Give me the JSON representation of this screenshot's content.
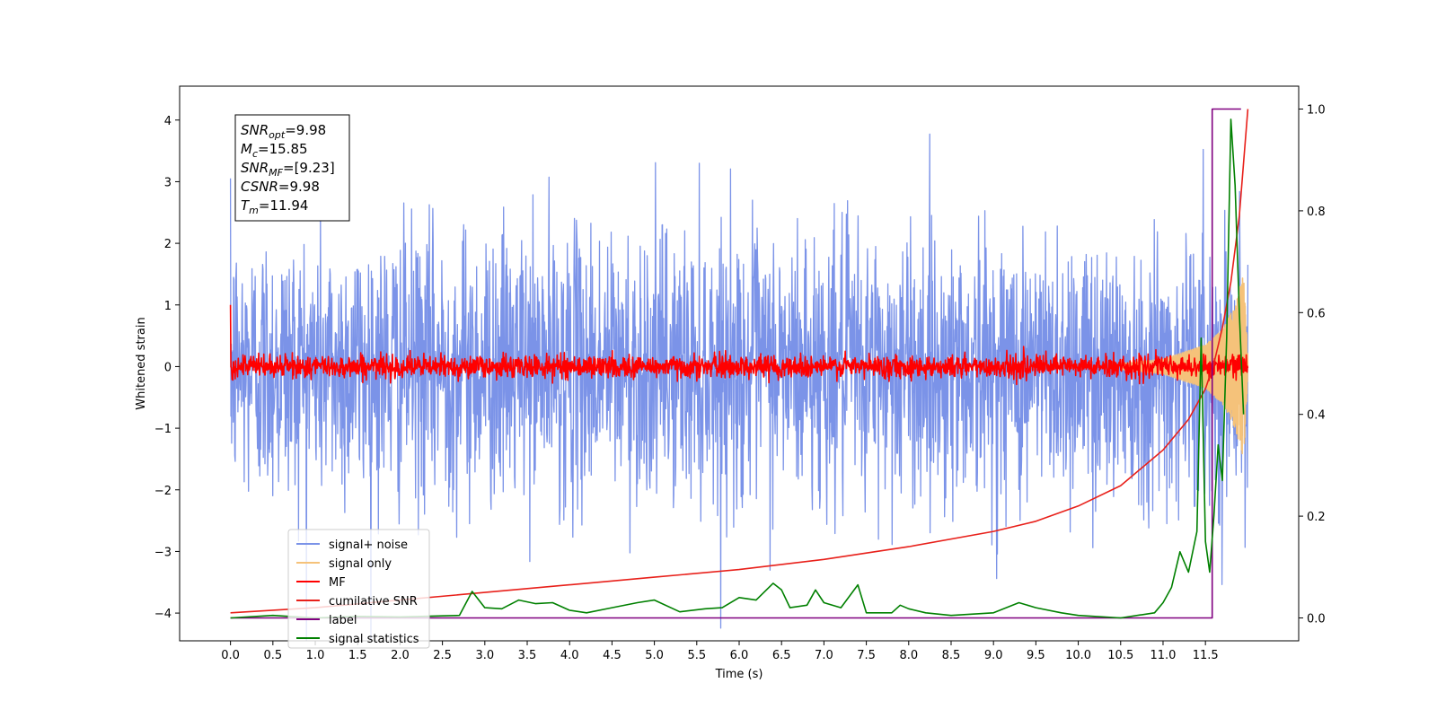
{
  "chart_data": {
    "type": "line",
    "xlabel": "Time (s)",
    "ylabel": "Whitened strain",
    "x_ticks": [
      "0.0",
      "0.5",
      "1.0",
      "1.5",
      "2.0",
      "2.5",
      "3.0",
      "3.5",
      "4.0",
      "4.5",
      "5.0",
      "5.5",
      "6.0",
      "6.5",
      "7.0",
      "7.5",
      "8.0",
      "8.5",
      "9.0",
      "9.5",
      "10.0",
      "10.5",
      "11.0",
      "11.5"
    ],
    "x_tick_values": [
      0,
      0.5,
      1,
      1.5,
      2,
      2.5,
      3,
      3.5,
      4,
      4.5,
      5,
      5.5,
      6,
      6.5,
      7,
      7.5,
      8,
      8.5,
      9,
      9.5,
      10,
      10.5,
      11,
      11.5
    ],
    "y_ticks": [
      "−4",
      "−3",
      "−2",
      "−1",
      "0",
      "1",
      "2",
      "3",
      "4"
    ],
    "y_tick_values": [
      -4,
      -3,
      -2,
      -1,
      0,
      1,
      2,
      3,
      4
    ],
    "y2_ticks": [
      "0.0",
      "0.2",
      "0.4",
      "0.6",
      "0.8",
      "1.0"
    ],
    "y2_tick_values": [
      0,
      0.2,
      0.4,
      0.6,
      0.8,
      1.0
    ],
    "xlim": [
      -0.6,
      12.6
    ],
    "ylim": [
      -4.45,
      4.55
    ],
    "y2lim": [
      -0.045,
      1.045
    ],
    "legend_position": "lower-left",
    "annotation": {
      "lines": [
        {
          "sym": "SNR",
          "sub": "opt",
          "val": "=9.98"
        },
        {
          "sym": "M",
          "sub": "c",
          "val": "=15.85"
        },
        {
          "sym": "SNR",
          "sub": "MF",
          "val": "=[9.23]"
        },
        {
          "sym": "CSNR",
          "sub": "",
          "val": "=9.98"
        },
        {
          "sym": "T",
          "sub": "m",
          "val": "=11.94"
        }
      ]
    },
    "series": [
      {
        "name": "signal+ noise",
        "color": "#7b93e8",
        "axis": "left",
        "description_shape": "noise",
        "amplitude_std": 1.1,
        "t_start": 0.0,
        "t_end": 12.0
      },
      {
        "name": "signal only",
        "color": "#f5c27a",
        "axis": "left",
        "description_shape": "chirp",
        "t_start": 10.5,
        "t_end": 12.0,
        "envelope_t": [
          10.5,
          11.0,
          11.5,
          11.7,
          11.85,
          11.95,
          12.0
        ],
        "envelope_v": [
          0.05,
          0.12,
          0.35,
          0.6,
          1.0,
          1.5,
          0.2
        ]
      },
      {
        "name": "MF",
        "color": "#ff0000",
        "axis": "left",
        "description_shape": "noise",
        "amplitude_std": 0.09,
        "t_start": 0.0,
        "t_end": 12.0
      },
      {
        "name": "cumilative SNR",
        "color": "#e8201a",
        "axis": "right",
        "x": [
          0.0,
          1.0,
          2.0,
          3.0,
          4.0,
          5.0,
          6.0,
          7.0,
          8.0,
          9.0,
          9.5,
          10.0,
          10.5,
          11.0,
          11.3,
          11.5,
          11.6,
          11.7,
          11.8,
          11.9,
          12.0
        ],
        "y": [
          0.01,
          0.02,
          0.035,
          0.05,
          0.065,
          0.08,
          0.095,
          0.115,
          0.14,
          0.17,
          0.19,
          0.22,
          0.26,
          0.33,
          0.39,
          0.45,
          0.5,
          0.57,
          0.66,
          0.79,
          1.0
        ]
      },
      {
        "name": "label",
        "color": "#800080",
        "axis": "right",
        "x": [
          0.0,
          11.58,
          11.58,
          11.92
        ],
        "y": [
          0.0,
          0.0,
          1.0,
          1.0
        ]
      },
      {
        "name": "signal statistics",
        "color": "#008000",
        "axis": "right",
        "x": [
          0.0,
          0.5,
          1.0,
          1.5,
          2.0,
          2.5,
          2.7,
          2.85,
          3.0,
          3.2,
          3.4,
          3.6,
          3.8,
          4.0,
          4.2,
          4.5,
          4.8,
          5.0,
          5.3,
          5.6,
          5.8,
          6.0,
          6.2,
          6.4,
          6.5,
          6.6,
          6.8,
          6.9,
          7.0,
          7.2,
          7.4,
          7.5,
          7.8,
          7.9,
          8.0,
          8.2,
          8.5,
          9.0,
          9.3,
          9.5,
          9.8,
          10.0,
          10.5,
          10.9,
          11.0,
          11.1,
          11.2,
          11.3,
          11.4,
          11.45,
          11.5,
          11.55,
          11.6,
          11.65,
          11.7,
          11.75,
          11.8,
          11.85,
          11.9,
          11.95
        ],
        "y": [
          0.0,
          0.005,
          0.0,
          0.003,
          0.002,
          0.004,
          0.005,
          0.052,
          0.02,
          0.018,
          0.035,
          0.028,
          0.03,
          0.015,
          0.01,
          0.02,
          0.03,
          0.035,
          0.012,
          0.018,
          0.02,
          0.04,
          0.035,
          0.068,
          0.055,
          0.02,
          0.025,
          0.055,
          0.03,
          0.02,
          0.065,
          0.01,
          0.01,
          0.025,
          0.018,
          0.01,
          0.005,
          0.01,
          0.03,
          0.02,
          0.01,
          0.005,
          0.0,
          0.01,
          0.03,
          0.06,
          0.13,
          0.09,
          0.17,
          0.55,
          0.15,
          0.09,
          0.2,
          0.34,
          0.27,
          0.55,
          0.98,
          0.85,
          0.6,
          0.4
        ]
      }
    ]
  }
}
